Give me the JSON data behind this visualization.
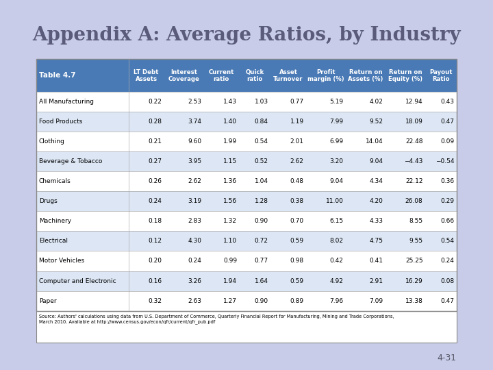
{
  "title": "Appendix A: Average Ratios, by Industry",
  "table_label": "Table 4.7",
  "background_color": "#c8cce8",
  "header_bg_color": "#4a7ab5",
  "header_text_color": "#ffffff",
  "table_bg_color": "#ffffff",
  "row_alt_color": "#dce6f4",
  "source_text": "Source: Authors' calculations using data from U.S. Department of Commerce, Quarterly Financial Report for Manufacturing, Mining and Trade Corporations,\nMarch 2010. Available at http://www.census.gov/econ/qfr/current/qfr_pub.pdf",
  "page_label": "4-31",
  "columns": [
    "",
    "LT Debt\nAssets",
    "Interest\nCoverage",
    "Current\nratio",
    "Quick\nratio",
    "Asset\nTurnover",
    "Profit\nmargin (%)",
    "Return on\nAssets (%)",
    "Return on\nEquity (%)",
    "Payout\nRatio"
  ],
  "rows": [
    [
      "All Manufacturing",
      "0.22",
      "2.53",
      "1.43",
      "1.03",
      "0.77",
      "5.19",
      "4.02",
      "12.94",
      "0.43"
    ],
    [
      "Food Products",
      "0.28",
      "3.74",
      "1.40",
      "0.84",
      "1.19",
      "7.99",
      "9.52",
      "18.09",
      "0.47"
    ],
    [
      "Clothing",
      "0.21",
      "9.60",
      "1.99",
      "0.54",
      "2.01",
      "6.99",
      "14.04",
      "22.48",
      "0.09"
    ],
    [
      "Beverage & Tobacco",
      "0.27",
      "3.95",
      "1.15",
      "0.52",
      "2.62",
      "3.20",
      "9.04",
      "−4.43",
      "−0.54"
    ],
    [
      "Chemicals",
      "0.26",
      "2.62",
      "1.36",
      "1.04",
      "0.48",
      "9.04",
      "4.34",
      "22.12",
      "0.36"
    ],
    [
      "Drugs",
      "0.24",
      "3.19",
      "1.56",
      "1.28",
      "0.38",
      "11.00",
      "4.20",
      "26.08",
      "0.29"
    ],
    [
      "Machinery",
      "0.18",
      "2.83",
      "1.32",
      "0.90",
      "0.70",
      "6.15",
      "4.33",
      "8.55",
      "0.66"
    ],
    [
      "Electrical",
      "0.12",
      "4.30",
      "1.10",
      "0.72",
      "0.59",
      "8.02",
      "4.75",
      "9.55",
      "0.54"
    ],
    [
      "Motor Vehicles",
      "0.20",
      "0.24",
      "0.99",
      "0.77",
      "0.98",
      "0.42",
      "0.41",
      "25.25",
      "0.24"
    ],
    [
      "Computer and Electronic",
      "0.16",
      "3.26",
      "1.94",
      "1.64",
      "0.59",
      "4.92",
      "2.91",
      "16.29",
      "0.08"
    ],
    [
      "Paper",
      "0.32",
      "2.63",
      "1.27",
      "0.90",
      "0.89",
      "7.96",
      "7.09",
      "13.38",
      "0.47"
    ]
  ]
}
